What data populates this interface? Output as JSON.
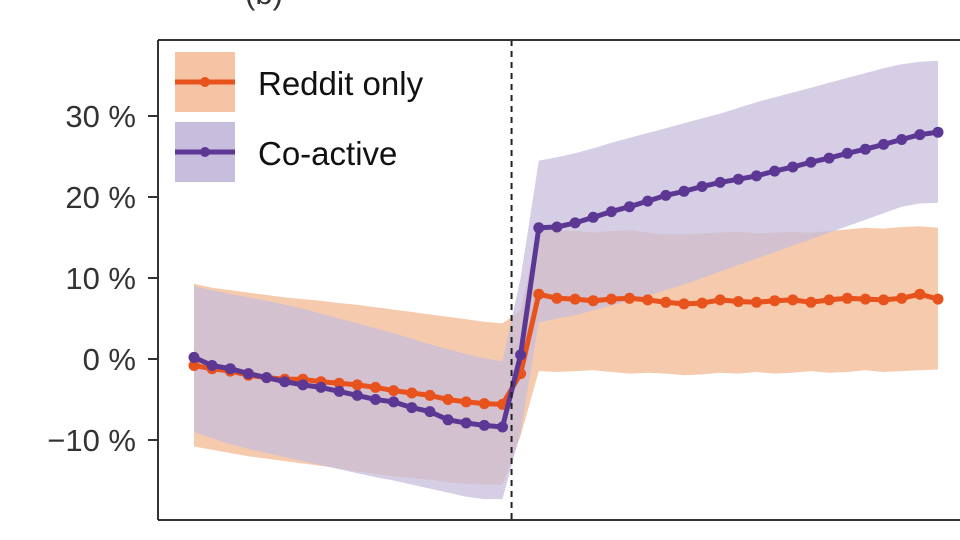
{
  "header": {
    "clipped_title": "(b)"
  },
  "chart_data": {
    "type": "line",
    "title": "",
    "xlabel": "",
    "ylabel": "",
    "y_tick_labels": [
      "−10 %",
      "0 %",
      "10 %",
      "20 %",
      "30 %"
    ],
    "y_tick_values": [
      -10,
      0,
      10,
      20,
      30
    ],
    "ylim": [
      -20,
      39
    ],
    "x_index_range": [
      0,
      35
    ],
    "event_index": 17.5,
    "event_line_style": "dashed",
    "grid": false,
    "legend_position": "top-left",
    "series": [
      {
        "name": "Reddit only",
        "color": "#e8521c",
        "band_color": "#f5c4a4",
        "values": [
          -0.8,
          -1.2,
          -1.5,
          -2.0,
          -2.3,
          -2.5,
          -2.5,
          -2.8,
          -3.0,
          -3.2,
          -3.5,
          -3.9,
          -4.2,
          -4.5,
          -5.0,
          -5.3,
          -5.5,
          -5.6,
          -1.8,
          8.0,
          7.5,
          7.4,
          7.2,
          7.4,
          7.5,
          7.3,
          7.0,
          6.8,
          6.9,
          7.3,
          7.1,
          7.0,
          7.2,
          7.3,
          7.0,
          7.3,
          7.5,
          7.4,
          7.3,
          7.5,
          8.0,
          7.4
        ],
        "lower": [
          -10.8,
          -11.2,
          -11.6,
          -12.0,
          -12.3,
          -12.6,
          -12.9,
          -13.2,
          -13.5,
          -13.9,
          -14.2,
          -14.5,
          -14.7,
          -14.9,
          -15.2,
          -15.4,
          -15.5,
          -15.5,
          -9.5,
          -1.5,
          -1.6,
          -1.5,
          -1.4,
          -1.6,
          -1.8,
          -1.7,
          -1.8,
          -2.0,
          -1.9,
          -1.7,
          -1.8,
          -1.6,
          -1.8,
          -1.7,
          -1.5,
          -1.7,
          -1.6,
          -1.4,
          -1.6,
          -1.5,
          -1.4,
          -1.3
        ],
        "upper": [
          9.3,
          8.8,
          8.5,
          8.2,
          7.9,
          7.6,
          7.4,
          7.2,
          6.9,
          6.7,
          6.4,
          6.1,
          5.8,
          5.5,
          5.2,
          4.9,
          4.6,
          4.4,
          6.0,
          16.2,
          15.9,
          15.8,
          15.6,
          15.8,
          15.9,
          15.6,
          15.4,
          15.4,
          15.5,
          15.6,
          15.7,
          15.5,
          15.6,
          15.7,
          15.6,
          15.8,
          16.0,
          16.2,
          16.1,
          16.3,
          16.4,
          16.2
        ]
      },
      {
        "name": "Co-active",
        "color": "#5c3894",
        "band_color": "#c7bddc",
        "values": [
          0.2,
          -0.8,
          -1.2,
          -1.8,
          -2.3,
          -2.8,
          -3.2,
          -3.5,
          -4.0,
          -4.5,
          -5.0,
          -5.3,
          -6.0,
          -6.5,
          -7.5,
          -7.9,
          -8.2,
          -8.4,
          0.5,
          16.2,
          16.3,
          16.8,
          17.5,
          18.2,
          18.8,
          19.5,
          20.2,
          20.7,
          21.3,
          21.8,
          22.2,
          22.6,
          23.2,
          23.7,
          24.3,
          24.8,
          25.4,
          25.9,
          26.5,
          27.1,
          27.7,
          28.0
        ],
        "lower": [
          -9.0,
          -9.8,
          -10.5,
          -11.1,
          -11.6,
          -12.1,
          -12.6,
          -13.1,
          -13.6,
          -14.1,
          -14.6,
          -15.0,
          -15.5,
          -16.0,
          -16.5,
          -17.0,
          -17.3,
          -17.3,
          -9.0,
          4.5,
          5.0,
          5.4,
          6.0,
          6.6,
          7.2,
          7.8,
          8.5,
          9.2,
          10.0,
          10.8,
          11.6,
          12.4,
          13.2,
          14.0,
          14.8,
          15.6,
          16.4,
          17.2,
          18.0,
          18.8,
          19.2,
          19.3
        ],
        "upper": [
          9.0,
          8.5,
          8.0,
          7.6,
          7.2,
          6.7,
          6.2,
          5.6,
          5.0,
          4.4,
          3.8,
          3.2,
          2.5,
          1.8,
          1.2,
          0.6,
          0.1,
          -0.3,
          10.0,
          24.5,
          24.9,
          25.4,
          26.0,
          26.7,
          27.3,
          27.9,
          28.5,
          29.1,
          29.7,
          30.3,
          31.0,
          31.7,
          32.3,
          32.9,
          33.5,
          34.1,
          34.7,
          35.3,
          35.9,
          36.4,
          36.7,
          36.8
        ]
      }
    ]
  }
}
